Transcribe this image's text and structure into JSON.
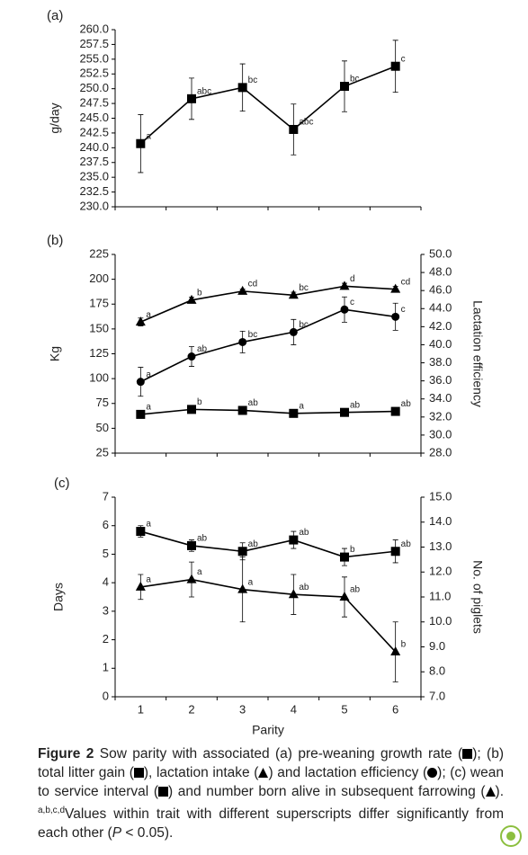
{
  "chart_data": [
    {
      "type": "line",
      "panel": "(a)",
      "ylabel": "g/day",
      "ylim": [
        230,
        260
      ],
      "yticks": [
        {
          "value": 230,
          "label": "230.0"
        },
        {
          "value": 232.5,
          "label": "232.5"
        },
        {
          "value": 235,
          "label": "235.0"
        },
        {
          "value": 237.5,
          "label": "237.5"
        },
        {
          "value": 240,
          "label": "240.0"
        },
        {
          "value": 242.5,
          "label": "242.5"
        },
        {
          "value": 245,
          "label": "245.0"
        },
        {
          "value": 247.5,
          "label": "247.5"
        },
        {
          "value": 250,
          "label": "250.0"
        },
        {
          "value": 252.5,
          "label": "252.5"
        },
        {
          "value": 255,
          "label": "255.0"
        },
        {
          "value": 257.5,
          "label": "257.5"
        },
        {
          "value": 260,
          "label": "260.0"
        }
      ],
      "series": [
        {
          "color": "#000000",
          "marker": "square",
          "values": [
            240.7,
            248.3,
            250.2,
            243.1,
            250.4,
            253.8
          ],
          "errors": [
            4.9,
            3.5,
            4.0,
            4.3,
            4.3,
            4.4
          ],
          "labels": [
            "a",
            "abc",
            "bc",
            "abc",
            "bc",
            "c"
          ]
        }
      ]
    },
    {
      "type": "line",
      "panel": "(b)",
      "ylabel": "Kg",
      "y2label": "Lactation efficiency",
      "ylim": [
        25,
        225
      ],
      "yticks": [
        25,
        50,
        75,
        100,
        125,
        150,
        175,
        200,
        225
      ],
      "y2lim": [
        28,
        50
      ],
      "y2ticks": [
        {
          "value": 28,
          "label": "28.0"
        },
        {
          "value": 30,
          "label": "30.0"
        },
        {
          "value": 32,
          "label": "32.0"
        },
        {
          "value": 34,
          "label": "34.0"
        },
        {
          "value": 36,
          "label": "36.0"
        },
        {
          "value": 38,
          "label": "38.0"
        },
        {
          "value": 40,
          "label": "40.0"
        },
        {
          "value": 42,
          "label": "42.0"
        },
        {
          "value": 44,
          "label": "44.0"
        },
        {
          "value": 46,
          "label": "46.0"
        },
        {
          "value": 48,
          "label": "48.0"
        },
        {
          "value": 50,
          "label": "50.0"
        }
      ],
      "series": [
        {
          "color": "#000000",
          "marker": "square",
          "values": [
            64,
            69,
            68,
            65,
            66,
            67
          ],
          "errors": [
            2,
            2,
            2,
            2,
            2,
            2
          ],
          "labels": [
            "a",
            "b",
            "ab",
            "a",
            "ab",
            "ab"
          ]
        },
        {
          "color": "#000000",
          "marker": "triangle",
          "values": [
            157,
            179,
            188,
            184,
            193,
            190
          ],
          "errors": [
            4,
            3,
            2,
            3,
            3,
            3
          ],
          "labels": [
            "a",
            "b",
            "cd",
            "bc",
            "d",
            "cd"
          ]
        },
        {
          "color": "#000000",
          "marker": "circle",
          "axis": "y2",
          "values": [
            35.9,
            38.7,
            40.3,
            41.4,
            43.9,
            43.1
          ],
          "errors": [
            1.6,
            1.1,
            1.2,
            1.4,
            1.4,
            1.5
          ],
          "labels": [
            "a",
            "ab",
            "bc",
            "bc",
            "c",
            "c"
          ]
        }
      ]
    },
    {
      "type": "line",
      "panel": "(c)",
      "ylabel": "Days",
      "y2label": "No. of piglets",
      "xlabel": "Parity",
      "categories": [
        "1",
        "2",
        "3",
        "4",
        "5",
        "6"
      ],
      "ylim": [
        0,
        7
      ],
      "yticks": [
        0,
        1,
        2,
        3,
        4,
        5,
        6,
        7
      ],
      "y2lim": [
        7,
        15
      ],
      "y2ticks": [
        {
          "value": 7,
          "label": "7.0"
        },
        {
          "value": 8,
          "label": "8.0"
        },
        {
          "value": 9,
          "label": "9.0"
        },
        {
          "value": 10,
          "label": "10.0"
        },
        {
          "value": 11,
          "label": "11.0"
        },
        {
          "value": 12,
          "label": "12.0"
        },
        {
          "value": 13,
          "label": "13.0"
        },
        {
          "value": 14,
          "label": "14.0"
        },
        {
          "value": 15,
          "label": "15.0"
        }
      ],
      "series": [
        {
          "color": "#000000",
          "marker": "square",
          "values": [
            5.8,
            5.3,
            5.1,
            5.5,
            4.9,
            5.1
          ],
          "errors": [
            0.2,
            0.2,
            0.3,
            0.3,
            0.3,
            0.4
          ],
          "labels": [
            "a",
            "ab",
            "ab",
            "ab",
            "b",
            "ab"
          ]
        },
        {
          "color": "#000000",
          "marker": "triangle",
          "axis": "y2",
          "values": [
            11.4,
            11.7,
            11.3,
            11.1,
            11.0,
            8.8
          ],
          "errors": [
            0.5,
            0.7,
            1.3,
            0.8,
            0.8,
            1.2
          ],
          "labels": [
            "a",
            "a",
            "a",
            "ab",
            "ab",
            "b"
          ]
        }
      ]
    }
  ],
  "caption": {
    "label": "Figure 2",
    "runs": [
      " Sow parity with associated (a) pre-weaning growth rate (",
      "); (b) total litter gain (",
      "), lactation intake (",
      ") and lactation efficiency (",
      "); (c) wean to service interval (",
      ") and number born alive in subsequent farrowing (",
      ").",
      "a,b,c,d",
      "Values within trait with different superscripts differ significantly from each other (",
      "P",
      " < 0.05)."
    ]
  }
}
